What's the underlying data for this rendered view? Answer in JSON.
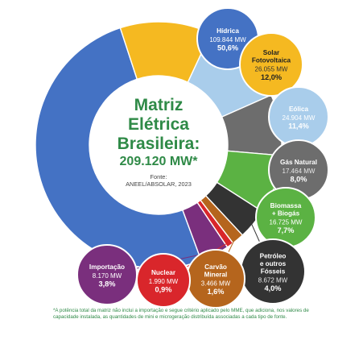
{
  "chart_data": {
    "type": "pie",
    "title_lines": [
      "Matriz",
      "Elétrica",
      "Brasileira:"
    ],
    "total": "209.120 MW*",
    "source_label": "Fonte:",
    "source": "ANEEL/ABSOLAR, 2023",
    "colors": {
      "title": "#2f8a47",
      "source": "#444444"
    },
    "series": [
      {
        "name": "Hídrica",
        "power": "109.844 MW",
        "share_label": "50,6%",
        "value": 50.6,
        "color": "#4472c4"
      },
      {
        "name": "Solar Fotovoltaica",
        "power": "26.055 MW",
        "share_label": "12,0%",
        "value": 12.0,
        "color": "#f5b921"
      },
      {
        "name": "Eólica",
        "power": "24.904 MW",
        "share_label": "11,4%",
        "value": 11.4,
        "color": "#a9cdeb"
      },
      {
        "name": "Gás Natural",
        "power": "17.464 MW",
        "share_label": "8,0%",
        "value": 8.0,
        "color": "#6d6d6d"
      },
      {
        "name": "Biomassa + Biogás",
        "power": "16.725 MW",
        "share_label": "7,7%",
        "value": 7.7,
        "color": "#5bb243"
      },
      {
        "name": "Petróleo e outros Fósseis",
        "power": "8.672 MW",
        "share_label": "4,0%",
        "value": 4.0,
        "color": "#333333"
      },
      {
        "name": "Carvão Mineral",
        "power": "3.466 MW",
        "share_label": "1,6%",
        "value": 1.6,
        "color": "#b5651d"
      },
      {
        "name": "Nuclear",
        "power": "1.990 MW",
        "share_label": "0,9%",
        "value": 0.9,
        "color": "#d9262b"
      },
      {
        "name": "Importação",
        "power": "8.170 MW",
        "share_label": "3,8%",
        "value": 3.8,
        "color": "#7a2f7d"
      }
    ]
  },
  "footnote": "*A potência total da matriz não inclui a importação e segue critério aplicado pelo MME, que adiciona, nos valores de capacidade instalada, as quantidades de mini e microgeração distribuída associadas a cada tipo de fonte."
}
